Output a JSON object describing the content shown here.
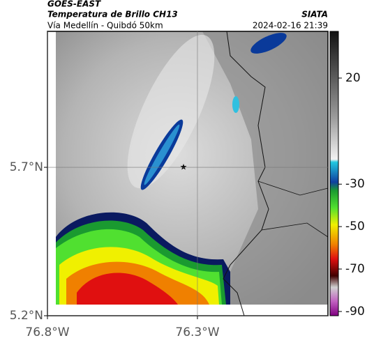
{
  "header": {
    "source": "GOES-EAST",
    "title": "Temperatura de Brillo CH13",
    "subtitle": "Vía Medellín - Quibdó 50km",
    "org": "SIATA",
    "datetime": "2024-02-16 21:39"
  },
  "map": {
    "xlim": [
      -76.8,
      -75.865
    ],
    "ylim": [
      5.2,
      6.158
    ],
    "xticks": [
      {
        "value": -76.8,
        "label": "76.8°W"
      },
      {
        "value": -76.3,
        "label": "76.3°W"
      }
    ],
    "yticks": [
      {
        "value": 5.7,
        "label": "5.7°N"
      },
      {
        "value": 5.2,
        "label": "5.2°N"
      }
    ]
  },
  "colorbar": {
    "lim": [
      -92,
      42
    ],
    "ticks": [
      20,
      -30,
      -50,
      -70,
      -90
    ]
  }
}
